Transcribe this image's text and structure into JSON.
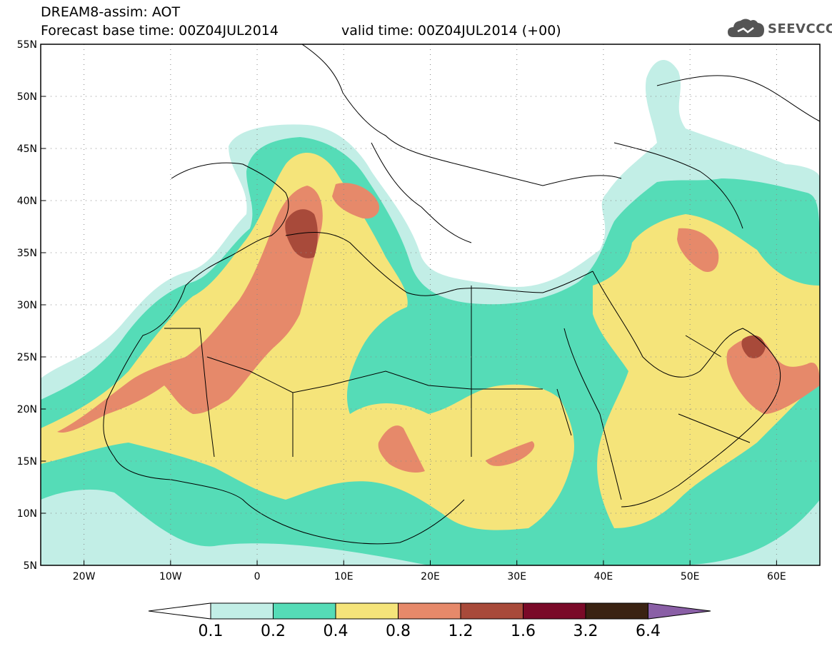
{
  "header": {
    "title_line1": "DREAM8-assim: AOT",
    "forecast_base_label": "Forecast base time: 00Z04JUL2014",
    "valid_time_label": "valid time: 00Z04JUL2014 (+00)"
  },
  "logo": {
    "text": "SEEVCCC",
    "icon": "cloud-icon",
    "color": "#555555"
  },
  "map": {
    "lon_range": [
      -25,
      65
    ],
    "lat_range": [
      5,
      55
    ],
    "lon_ticks": [
      {
        "value": -20,
        "label": "20W"
      },
      {
        "value": -10,
        "label": "10W"
      },
      {
        "value": 0,
        "label": "0"
      },
      {
        "value": 10,
        "label": "10E"
      },
      {
        "value": 20,
        "label": "20E"
      },
      {
        "value": 30,
        "label": "30E"
      },
      {
        "value": 40,
        "label": "40E"
      },
      {
        "value": 50,
        "label": "50E"
      },
      {
        "value": 60,
        "label": "60E"
      }
    ],
    "lat_ticks": [
      {
        "value": 5,
        "label": "5N"
      },
      {
        "value": 10,
        "label": "10N"
      },
      {
        "value": 15,
        "label": "15N"
      },
      {
        "value": 20,
        "label": "20N"
      },
      {
        "value": 25,
        "label": "25N"
      },
      {
        "value": 30,
        "label": "30N"
      },
      {
        "value": 35,
        "label": "35N"
      },
      {
        "value": 40,
        "label": "40N"
      },
      {
        "value": 45,
        "label": "45N"
      },
      {
        "value": 50,
        "label": "50N"
      },
      {
        "value": 55,
        "label": "55N"
      }
    ],
    "gridlines": "dotted"
  },
  "colorbar": {
    "labels": [
      "0.1",
      "0.2",
      "0.4",
      "0.8",
      "1.2",
      "1.6",
      "3.2",
      "6.4"
    ],
    "under_color": "#ffffff",
    "over_color": "#8a5fa6",
    "bins": [
      {
        "from": "0.1",
        "to": "0.2",
        "color": "#c2eee6"
      },
      {
        "from": "0.2",
        "to": "0.4",
        "color": "#55dcb7"
      },
      {
        "from": "0.4",
        "to": "0.8",
        "color": "#f5e47a"
      },
      {
        "from": "0.8",
        "to": "1.2",
        "color": "#e6896a"
      },
      {
        "from": "1.2",
        "to": "1.6",
        "color": "#a84a3a"
      },
      {
        "from": "1.6",
        "to": "3.2",
        "color": "#7a0a28"
      },
      {
        "from": "3.2",
        "to": "6.4",
        "color": "#3a2212"
      }
    ]
  }
}
